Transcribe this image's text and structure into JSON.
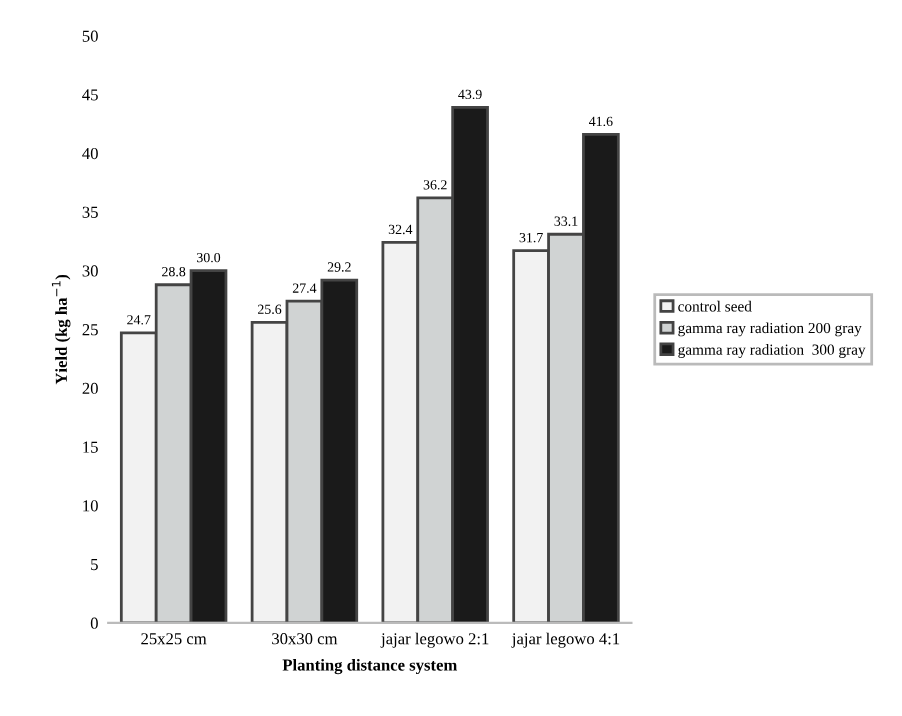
{
  "chart_data": {
    "type": "bar",
    "xlabel": "Planting distance system",
    "ylabel": "Yield (kg ha$^{−1}$)",
    "categories": [
      "25x25 cm",
      "30x30 cm",
      "jajar legowo 2:1",
      "jajar legowo 4:1"
    ],
    "series": [
      {
        "name": "control seed",
        "color": "#f2f2f2",
        "values": [
          24.7,
          25.6,
          32.4,
          31.7
        ],
        "value_labels": [
          "24.7",
          "25.6",
          "32.4",
          "31.7"
        ]
      },
      {
        "name": "gamma ray radiation 200 gray",
        "color": "#d0d3d3",
        "values": [
          28.8,
          27.4,
          36.2,
          33.1
        ],
        "value_labels": [
          "28.8",
          "27.4",
          "36.2",
          "33.1"
        ]
      },
      {
        "name": "gamma ray radiation  300 gray",
        "color": "#1a1a1a",
        "values": [
          30.0,
          29.2,
          43.9,
          41.6
        ],
        "value_labels": [
          "30.0",
          "29.2",
          "43.9",
          "41.6"
        ]
      }
    ],
    "ylim": [
      0,
      50
    ],
    "yticks": [
      0,
      5,
      10,
      15,
      20,
      25,
      30,
      35,
      40,
      45,
      50
    ],
    "grid": false,
    "legend": "right"
  }
}
